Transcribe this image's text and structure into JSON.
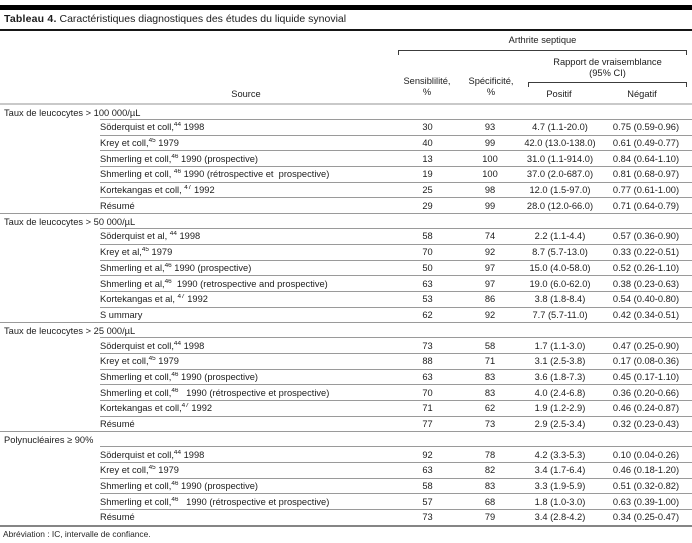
{
  "title": {
    "label": "Tableau 4.",
    "text": " Caractéristiques diagnostiques des études du liquide synovial"
  },
  "header": {
    "group": "Arthrite septique",
    "likelihood_group": "Rapport de vraisemblance\n(95% CI)",
    "columns": {
      "source": "Source",
      "sensitivity": "Sensiblilité,\n%",
      "specificity": "Spécificité,\n%",
      "positive": "Positif",
      "negative": "Négatif"
    }
  },
  "sections": [
    {
      "label": "Taux de leucocytes > 100 000/µL",
      "rows": [
        {
          "source": "Söderquist et coll,",
          "ref": "44",
          "suffix": " 1998",
          "sens": "30",
          "spec": "93",
          "pos": "4.7 (1.1-20.0)",
          "neg": "0.75 (0.59-0.96)"
        },
        {
          "source": "Krey et coll,",
          "ref": "45",
          "suffix": " 1979",
          "sens": "40",
          "spec": "99",
          "pos": "42.0 (13.0-138.0)",
          "neg": "0.61 (0.49-0.77)"
        },
        {
          "source": "Shmerling et coll,",
          "ref": "46",
          "suffix": " 1990 (prospective)",
          "sens": "13",
          "spec": "100",
          "pos": "31.0 (1.1-914.0)",
          "neg": "0.84 (0.64-1.10)"
        },
        {
          "source": "Shmerling et coll, ",
          "ref": "46",
          "suffix": " 1990 (rétrospective et  prospective)",
          "sens": "19",
          "spec": "100",
          "pos": "37.0 (2.0-687.0)",
          "neg": "0.81 (0.68-0.97)"
        },
        {
          "source": "Kortekangas et coll, ",
          "ref": "47",
          "suffix": " 1992",
          "sens": "25",
          "spec": "98",
          "pos": "12.0 (1.5-97.0)",
          "neg": "0.77 (0.61-1.00)"
        },
        {
          "source": "Résumé",
          "ref": "",
          "suffix": "",
          "sens": "29",
          "spec": "99",
          "pos": "28.0 (12.0-66.0)",
          "neg": "0.71 (0.64-0.79)"
        }
      ]
    },
    {
      "label": "Taux de leucocytes > 50 000/µL",
      "rows": [
        {
          "source": "Söderquist et al, ",
          "ref": "44",
          "suffix": " 1998",
          "sens": "58",
          "spec": "74",
          "pos": "2.2 (1.1-4.4)",
          "neg": "0.57 (0.36-0.90)"
        },
        {
          "source": "Krey et al,",
          "ref": "45",
          "suffix": " 1979",
          "sens": "70",
          "spec": "92",
          "pos": "8.7 (5.7-13.0)",
          "neg": "0.33 (0.22-0.51)"
        },
        {
          "source": "Shmerling et al,",
          "ref": "46",
          "suffix": " 1990 (prospective)",
          "sens": "50",
          "spec": "97",
          "pos": "15.0 (4.0-58.0)",
          "neg": "0.52 (0.26-1.10)"
        },
        {
          "source": "Shmerling et al,",
          "ref": "46",
          "suffix": "  1990 (retrospective and prospective)",
          "sens": "63",
          "spec": "97",
          "pos": "19.0 (6.0-62.0)",
          "neg": "0.38 (0.23-0.63)"
        },
        {
          "source": "Kortekangas et al, ",
          "ref": "47",
          "suffix": " 1992",
          "sens": "53",
          "spec": "86",
          "pos": "3.8 (1.8-8.4)",
          "neg": "0.54 (0.40-0.80)"
        },
        {
          "source": "S ummary",
          "ref": "",
          "suffix": "",
          "sens": "62",
          "spec": "92",
          "pos": "7.7 (5.7-11.0)",
          "neg": "0.42 (0.34-0.51)"
        }
      ]
    },
    {
      "label": "Taux de leucocytes > 25 000/µL",
      "rows": [
        {
          "source": "Söderquist et coll,",
          "ref": "44",
          "suffix": " 1998",
          "sens": "73",
          "spec": "58",
          "pos": "1.7 (1.1-3.0)",
          "neg": "0.47 (0.25-0.90)"
        },
        {
          "source": "Krey et coll,",
          "ref": "45",
          "suffix": " 1979",
          "sens": "88",
          "spec": "71",
          "pos": "3.1 (2.5-3.8)",
          "neg": "0.17 (0.08-0.36)"
        },
        {
          "source": "Shmerling et coll,",
          "ref": "46",
          "suffix": " 1990 (prospective)",
          "sens": "63",
          "spec": "83",
          "pos": "3.6 (1.8-7.3)",
          "neg": "0.45 (0.17-1.10)"
        },
        {
          "source": "Shmerling et coll,",
          "ref": "46",
          "suffix": "   1990 (rétrospective et prospective)",
          "sens": "70",
          "spec": "83",
          "pos": "4.0 (2.4-6.8)",
          "neg": "0.36 (0.20-0.66)"
        },
        {
          "source": "Kortekangas et coll,",
          "ref": "47",
          "suffix": " 1992",
          "sens": "71",
          "spec": "62",
          "pos": "1.9 (1.2-2.9)",
          "neg": "0.46 (0.24-0.87)"
        },
        {
          "source": "Résumé",
          "ref": "",
          "suffix": "",
          "sens": "77",
          "spec": "73",
          "pos": "2.9 (2.5-3.4)",
          "neg": "0.32 (0.23-0.43)"
        }
      ]
    },
    {
      "label": "Polynucléaires ≥ 90%",
      "rows": [
        {
          "source": "Söderquist et coll,",
          "ref": "44",
          "suffix": " 1998",
          "sens": "92",
          "spec": "78",
          "pos": "4.2 (3.3-5.3)",
          "neg": "0.10 (0.04-0.26)"
        },
        {
          "source": "Krey et coll,",
          "ref": "45",
          "suffix": " 1979",
          "sens": "63",
          "spec": "82",
          "pos": "3.4 (1.7-6.4)",
          "neg": "0.46 (0.18-1.20)"
        },
        {
          "source": "Shmerling et coll,",
          "ref": "46",
          "suffix": " 1990 (prospective)",
          "sens": "58",
          "spec": "83",
          "pos": "3.3 (1.9-5.9)",
          "neg": "0.51 (0.32-0.82)"
        },
        {
          "source": "Shmerling et coll,",
          "ref": "46",
          "suffix": "   1990 (rétrospective et prospective)",
          "sens": "57",
          "spec": "68",
          "pos": "1.8 (1.0-3.0)",
          "neg": "0.63 (0.39-1.00)"
        },
        {
          "source": "Résumé",
          "ref": "",
          "suffix": "",
          "sens": "73",
          "spec": "79",
          "pos": "3.4 (2.8-4.2)",
          "neg": "0.34 (0.25-0.47)"
        }
      ]
    }
  ],
  "footnote": "Abréviation : IC, intervalle de confiance.",
  "colors": {
    "top_bar": "#000000",
    "title_rule": "#161616",
    "header_rule": "#c9c9c9",
    "row_rule": "#9a9a9a",
    "bottom_rule": "#858585",
    "text": "#1c1c1c",
    "background": "#ffffff"
  }
}
